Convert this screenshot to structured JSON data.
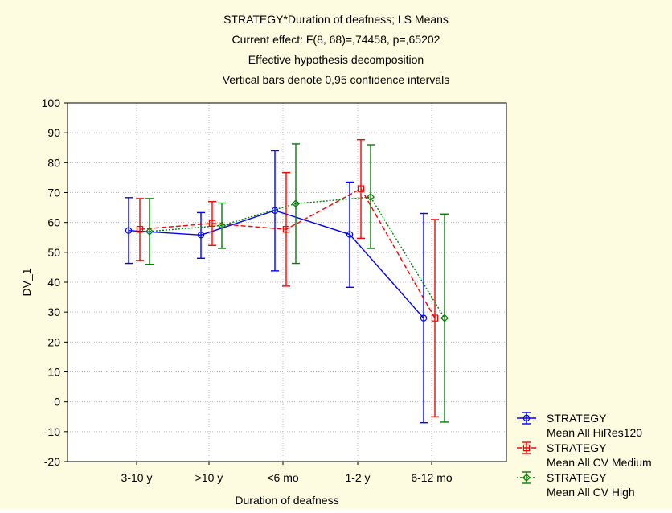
{
  "chart_data": {
    "type": "line",
    "title_lines": [
      "STRATEGY*Duration of deafness; LS Means",
      "Current effect: F(8, 68)=,74458, p=,65202",
      "Effective hypothesis decomposition",
      "Vertical bars denote 0,95 confidence intervals"
    ],
    "xlabel": "Duration of deafness",
    "ylabel": "DV_1",
    "ylim": [
      -20,
      100
    ],
    "yticks": [
      "100",
      "90",
      "80",
      "70",
      "60",
      "50",
      "40",
      "30",
      "20",
      "10",
      "0",
      "-10",
      "-20"
    ],
    "categories": [
      "3-10 y",
      ">10 y",
      "<6 mo",
      "1-2 y",
      "6-12 mo"
    ],
    "grid": true,
    "legend_position": "bottom-right",
    "series": [
      {
        "legend_line1": "STRATEGY",
        "legend_line2": "Mean All HiRes120",
        "color": "#0000ff",
        "dash": "solid",
        "marker": "circle",
        "values": [
          57.3,
          55.8,
          64.0,
          56.0,
          28.0
        ],
        "lower": [
          46.3,
          48.0,
          43.8,
          38.3,
          -7.0
        ],
        "upper": [
          68.3,
          63.3,
          84.0,
          73.5,
          63.0
        ]
      },
      {
        "legend_line1": "STRATEGY",
        "legend_line2": "Mean All CV Medium",
        "color": "#ff0000",
        "dash": "dashed",
        "marker": "square",
        "values": [
          57.7,
          59.7,
          57.7,
          71.3,
          28.0
        ],
        "lower": [
          47.3,
          52.3,
          38.7,
          54.7,
          -5.0
        ],
        "upper": [
          68.0,
          67.0,
          76.7,
          87.7,
          61.0
        ]
      },
      {
        "legend_line1": "STRATEGY",
        "legend_line2": "Mean All CV High",
        "color": "#008000",
        "dash": "dotted",
        "marker": "diamond",
        "values": [
          57.0,
          59.0,
          66.3,
          68.5,
          28.0
        ],
        "lower": [
          46.0,
          51.3,
          46.3,
          51.3,
          -6.8
        ],
        "upper": [
          68.0,
          66.5,
          86.3,
          86.0,
          62.8
        ]
      }
    ]
  }
}
